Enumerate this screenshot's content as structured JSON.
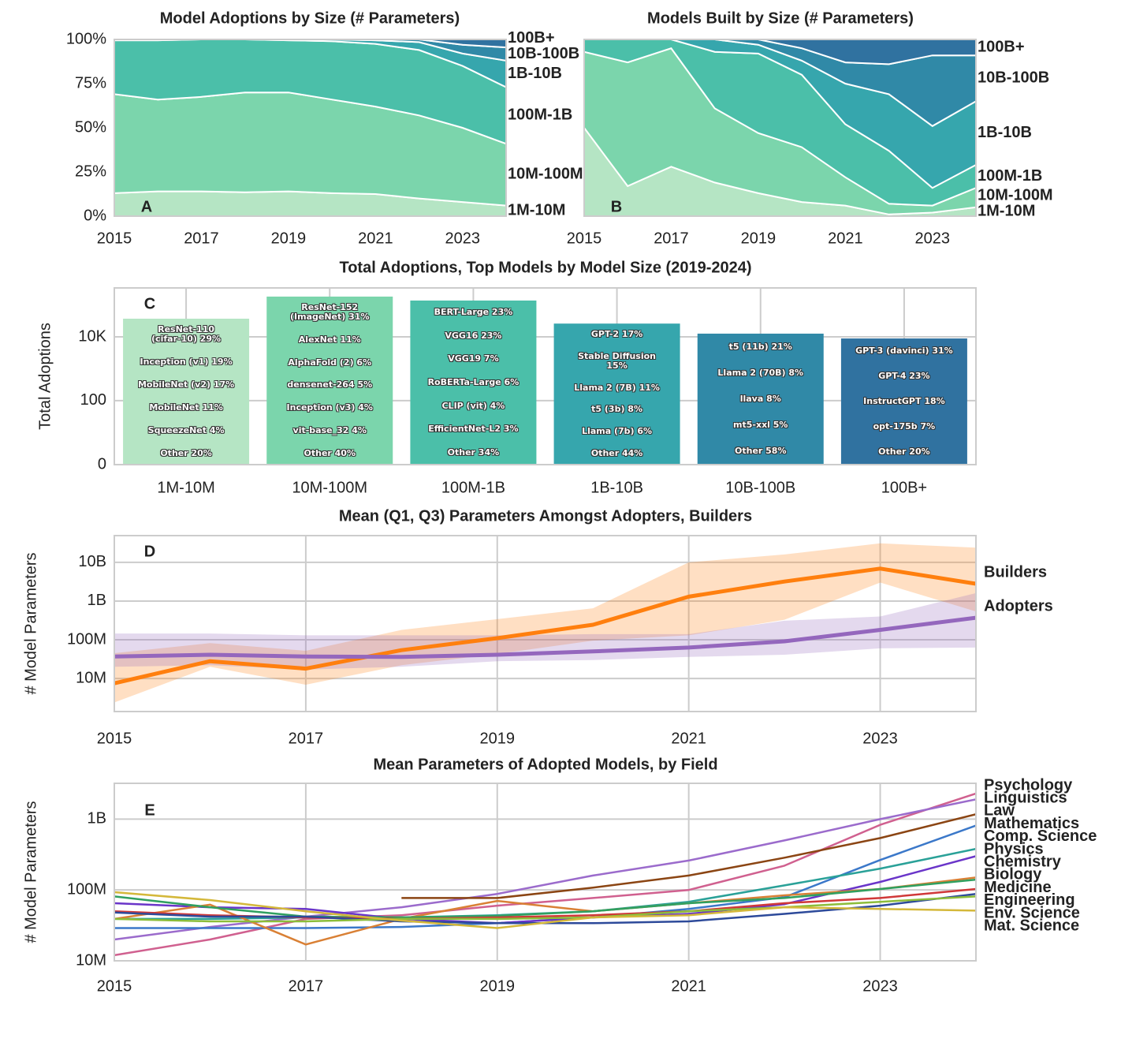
{
  "chart_data": [
    {
      "type": "area",
      "title": "Model Adoptions by Size (# Parameters)",
      "panel": "A",
      "x": [
        2015,
        2016,
        2017,
        2018,
        2019,
        2020,
        2021,
        2022,
        2023,
        2024
      ],
      "xlim": [
        2015,
        2024
      ],
      "xticks": [
        2015,
        2017,
        2019,
        2021,
        2023
      ],
      "ylim": [
        0,
        100
      ],
      "yticks": [
        {
          "value": 0,
          "label": "0%"
        },
        {
          "value": 25,
          "label": "25%"
        },
        {
          "value": 50,
          "label": "50%"
        },
        {
          "value": 75,
          "label": "75%"
        },
        {
          "value": 100,
          "label": "100%"
        }
      ],
      "series": [
        {
          "name": "1M-10M",
          "color": "#b5e5c4",
          "values": [
            13,
            14,
            14,
            13.5,
            14,
            13,
            12.5,
            10,
            8,
            6
          ]
        },
        {
          "name": "10M-100M",
          "color": "#7bd5ac",
          "values": [
            56,
            52,
            53.5,
            56.5,
            56,
            53,
            49.5,
            47,
            42,
            35
          ]
        },
        {
          "name": "100M-1B",
          "color": "#4bbfa9",
          "values": [
            30.5,
            33.5,
            32.5,
            30,
            29.5,
            33,
            35.5,
            37,
            35,
            32
          ]
        },
        {
          "name": "1B-10B",
          "color": "#36a6ad",
          "values": [
            0.5,
            0.5,
            0,
            0,
            0.5,
            1,
            2,
            4.5,
            7,
            15
          ]
        },
        {
          "name": "10B-100B",
          "color": "#3089a7",
          "values": [
            0,
            0,
            0,
            0,
            0,
            0,
            0.5,
            1.5,
            5,
            7.5
          ]
        },
        {
          "name": "100B+",
          "color": "#3072a0",
          "values": [
            0,
            0,
            0,
            0,
            0,
            0,
            0,
            0,
            3,
            4.5
          ]
        }
      ]
    },
    {
      "type": "area",
      "title": "Models Built by Size (# Parameters)",
      "panel": "B",
      "x": [
        2015,
        2016,
        2017,
        2018,
        2019,
        2020,
        2021,
        2022,
        2023,
        2024
      ],
      "xlim": [
        2015,
        2024
      ],
      "xticks": [
        2015,
        2017,
        2019,
        2021,
        2023
      ],
      "ylim": [
        0,
        100
      ],
      "series": [
        {
          "name": "1M-10M",
          "color": "#b5e5c4",
          "values": [
            50,
            17,
            28,
            19,
            13,
            8,
            6,
            1,
            2,
            5
          ]
        },
        {
          "name": "10M-100M",
          "color": "#7bd5ac",
          "values": [
            43,
            70,
            67,
            42,
            34,
            31,
            16,
            6,
            4,
            11
          ]
        },
        {
          "name": "100M-1B",
          "color": "#4bbfa9",
          "values": [
            7,
            13,
            5,
            32,
            45,
            41,
            30,
            30,
            10,
            13
          ]
        },
        {
          "name": "1B-10B",
          "color": "#36a6ad",
          "values": [
            0,
            0,
            0,
            7,
            5,
            8,
            23,
            32,
            35,
            36
          ]
        },
        {
          "name": "10B-100B",
          "color": "#3089a7",
          "values": [
            0,
            0,
            0,
            0,
            3,
            7,
            12,
            17,
            40,
            26
          ]
        },
        {
          "name": "100B+",
          "color": "#3072a0",
          "values": [
            0,
            0,
            0,
            0,
            0,
            5,
            13,
            14,
            9,
            9
          ]
        }
      ]
    },
    {
      "type": "bar",
      "title": "Total Adoptions, Top Models by Model Size  (2019-2024)",
      "panel": "C",
      "ylabel": "Total Adoptions",
      "yscale": "symlog",
      "categories": [
        "1M-10M",
        "10M-100M",
        "100M-1B",
        "1B-10B",
        "10B-100B",
        "100B+"
      ],
      "values": [
        37000,
        182000,
        137000,
        26000,
        12600,
        8900
      ],
      "colors": [
        "#b5e5c4",
        "#7bd5ac",
        "#4bbfa9",
        "#36a6ad",
        "#3089a7",
        "#3072a0"
      ],
      "annotations": [
        [
          "ResNet-110\n(cifar-10)  29%",
          "Inception (v1)  19%",
          "MobileNet (v2)  17%",
          "MobileNet  11%",
          "SqueezeNet  4%",
          "Other  20%"
        ],
        [
          "ResNet-152\n(ImageNet)  31%",
          "AlexNet  11%",
          "AlphaFold (2)  6%",
          "densenet-264  5%",
          "Inception (v3)  4%",
          "vit-base_32  4%",
          "Other  40%"
        ],
        [
          "BERT-Large  23%",
          "VGG16  23%",
          "VGG19  7%",
          "RoBERTa-Large  6%",
          "CLIP (vit)  4%",
          "EfficientNet-L2  3%",
          "Other  34%"
        ],
        [
          "GPT-2  17%",
          "Stable Diffusion\n15%",
          "Llama 2 (7B)  11%",
          "t5 (3b)  8%",
          "Llama (7b)  6%",
          "Other  44%"
        ],
        [
          "t5 (11b)  21%",
          "Llama 2 (70B)  8%",
          "llava  8%",
          "mt5-xxl  5%",
          "Other  58%"
        ],
        [
          "GPT-3 (davinci)  31%",
          "GPT-4  23%",
          "InstructGPT  18%",
          "opt-175b  7%",
          "Other  20%"
        ]
      ],
      "ylim": [
        0,
        340000
      ],
      "yticks": [
        0,
        100,
        {
          "value": 10000,
          "label": "10K"
        }
      ],
      "grid": true
    },
    {
      "type": "band_line",
      "title": "Mean (Q1, Q3) Parameters Amongst Adopters, Builders",
      "panel": "D",
      "ylabel": "# Model Parameters",
      "yscale": "log",
      "x": [
        2015,
        2016,
        2017,
        2018,
        2019,
        2020,
        2021,
        2022,
        2023,
        2024
      ],
      "xlim": [
        2015,
        2024
      ],
      "xticks": [
        2015,
        2017,
        2019,
        2021,
        2023
      ],
      "ylim": [
        1400000,
        49000000000
      ],
      "yticks": [
        {
          "value": 10000000,
          "label": "10M"
        },
        {
          "value": 100000000,
          "label": "100M"
        },
        {
          "value": 1000000000,
          "label": "1B"
        },
        {
          "value": 10000000000,
          "label": "10B"
        }
      ],
      "grid": true,
      "series": [
        {
          "name": "Builders",
          "color": "#ff7f0e",
          "values": [
            7500000,
            28000000,
            18000000,
            54000000,
            110000000,
            244000000,
            1300000000,
            3200000000,
            6900000000,
            2800000000
          ],
          "q1": [
            2400000,
            20000000,
            6900000,
            22000000,
            43000000,
            95000000,
            130000000,
            330000000,
            3000000000,
            540000000
          ],
          "q3": [
            45000000,
            82000000,
            52000000,
            180000000,
            340000000,
            650000000,
            10000000000,
            16000000000,
            31000000000,
            24000000000
          ]
        },
        {
          "name": "Adopters",
          "color": "#9467bd",
          "values": [
            37000000,
            41000000,
            37000000,
            36000000,
            41000000,
            50000000,
            63000000,
            91000000,
            180000000,
            370000000
          ],
          "q1": [
            20000000,
            22000000,
            17000000,
            20000000,
            28000000,
            30000000,
            36000000,
            41000000,
            60000000,
            63000000
          ],
          "q3": [
            145000000,
            145000000,
            130000000,
            130000000,
            130000000,
            140000000,
            140000000,
            310000000,
            400000000,
            1600000000
          ]
        }
      ]
    },
    {
      "type": "line",
      "title": "Mean Parameters of Adopted Models, by Field",
      "panel": "E",
      "ylabel": "# Model Parameters",
      "yscale": "log",
      "x": [
        2015,
        2016,
        2017,
        2018,
        2019,
        2020,
        2021,
        2022,
        2023,
        2024
      ],
      "xlim": [
        2015,
        2024
      ],
      "xticks": [
        2015,
        2017,
        2019,
        2021,
        2023
      ],
      "ylim": [
        10000000,
        3200000000
      ],
      "yticks": [
        {
          "value": 10000000,
          "label": "10M"
        },
        {
          "value": 100000000,
          "label": "100M"
        },
        {
          "value": 1000000000,
          "label": "1B"
        }
      ],
      "grid": true,
      "series": [
        {
          "name": "Psychology",
          "color": "#d0608f",
          "values": [
            12000000,
            20000000,
            39000000,
            44000000,
            60000000,
            77000000,
            100000000,
            220000000,
            830000000,
            2300000000
          ]
        },
        {
          "name": "Linguistics",
          "color": "#9b6bcc",
          "values": [
            20000000,
            30000000,
            42000000,
            57000000,
            88000000,
            160000000,
            260000000,
            500000000,
            1000000000,
            1900000000
          ]
        },
        {
          "name": "Law",
          "color": "#8b4513",
          "values": [
            null,
            null,
            null,
            77000000,
            77000000,
            108000000,
            160000000,
            285000000,
            540000000,
            1170000000
          ]
        },
        {
          "name": "Mathematics",
          "color": "#3b78c9",
          "values": [
            29000000,
            29000000,
            29000000,
            30000000,
            34000000,
            41000000,
            54000000,
            79000000,
            265000000,
            810000000
          ]
        },
        {
          "name": "Comp. Science",
          "color": "#2aa198",
          "values": [
            39000000,
            39000000,
            41000000,
            41000000,
            44000000,
            50000000,
            68000000,
            116000000,
            200000000,
            380000000
          ]
        },
        {
          "name": "Physics",
          "color": "#6a35c9",
          "values": [
            65000000,
            57000000,
            54000000,
            39000000,
            34000000,
            41000000,
            46000000,
            63000000,
            130000000,
            300000000
          ]
        },
        {
          "name": "Chemistry",
          "color": "#d98035",
          "values": [
            39000000,
            62000000,
            17000000,
            39000000,
            70000000,
            50000000,
            65000000,
            84000000,
            103000000,
            150000000
          ]
        },
        {
          "name": "Biology",
          "color": "#30a060",
          "values": [
            81000000,
            57000000,
            42000000,
            41000000,
            43000000,
            50000000,
            65000000,
            77000000,
            103000000,
            140000000
          ]
        },
        {
          "name": "Medicine",
          "color": "#d03838",
          "values": [
            50000000,
            44000000,
            41000000,
            39000000,
            41000000,
            44000000,
            50000000,
            65000000,
            77000000,
            103000000
          ]
        },
        {
          "name": "Engineering",
          "color": "#2d4a9a",
          "values": [
            48000000,
            42000000,
            42000000,
            36000000,
            34000000,
            34000000,
            36000000,
            46000000,
            60000000,
            88000000
          ]
        },
        {
          "name": "Env. Science",
          "color": "#8cbd3a",
          "values": [
            39000000,
            36000000,
            36000000,
            39000000,
            39000000,
            41000000,
            50000000,
            57000000,
            68000000,
            81000000
          ]
        },
        {
          "name": "Mat. Science",
          "color": "#d4b83a",
          "values": [
            93000000,
            72000000,
            50000000,
            37000000,
            29000000,
            41000000,
            44000000,
            57000000,
            54000000,
            51000000
          ]
        }
      ]
    }
  ]
}
